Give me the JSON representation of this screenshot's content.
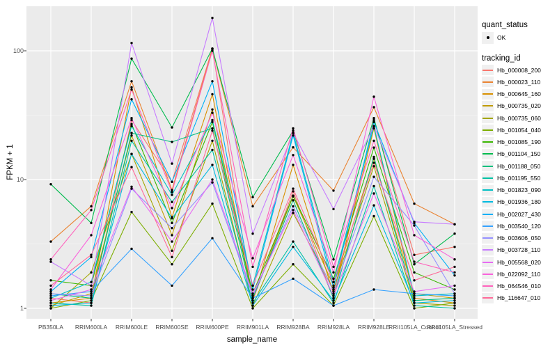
{
  "chart_data": {
    "type": "line",
    "title": "",
    "xlabel": "sample_name",
    "ylabel": "FPKM + 1",
    "y_scale": "log10",
    "ylim": [
      1,
      224
    ],
    "y_ticks": [
      {
        "label": "1",
        "value": 1
      },
      {
        "label": "10",
        "value": 10
      },
      {
        "label": "100",
        "value": 100
      }
    ],
    "y_minor_ticks": [
      3.162,
      31.62
    ],
    "grid": "major white + minor faint on gray panel",
    "legend_position": "right",
    "point_style": "black filled dot on every value",
    "x_categories": [
      "PB350LA",
      "RRIM600LA",
      "RRIM600LE",
      "RRIM600SE",
      "RRIM600PE",
      "RRIM901LA",
      "RRIM928BA",
      "RRIM928LA",
      "RRIM928LE",
      "RRII105LA_Control",
      "RRII105LA_Stressed"
    ],
    "series": [
      {
        "name": "Hb_000008_200",
        "color": "#F8766D",
        "values": [
          1.2,
          1.1,
          29,
          9.6,
          104,
          1.15,
          8.1,
          1.2,
          29,
          2.6,
          3.0
        ]
      },
      {
        "name": "Hb_000023_110",
        "color": "#EA8331",
        "values": [
          3.3,
          6.2,
          58,
          8.3,
          103,
          6.2,
          17.8,
          8.2,
          36.5,
          6.5,
          4.5
        ]
      },
      {
        "name": "Hb_000645_160",
        "color": "#D89000",
        "values": [
          1.1,
          1.2,
          52,
          5.1,
          46,
          1.15,
          13,
          1.3,
          25,
          1.2,
          1.1
        ]
      },
      {
        "name": "Hb_000735_020",
        "color": "#C09B00",
        "values": [
          1.05,
          1.3,
          22,
          3.7,
          35,
          1.2,
          7.4,
          1.5,
          14.5,
          1.3,
          1.2
        ]
      },
      {
        "name": "Hb_000735_060",
        "color": "#A3A500",
        "values": [
          1.0,
          1.9,
          15.8,
          2.8,
          20,
          1.05,
          5.5,
          1.4,
          12.7,
          1.1,
          1.05
        ]
      },
      {
        "name": "Hb_001054_040",
        "color": "#7CAE00",
        "values": [
          1.0,
          1.15,
          5.6,
          2.2,
          6.5,
          1.0,
          2.2,
          1.05,
          5.2,
          1.0,
          1.1
        ]
      },
      {
        "name": "Hb_001085_190",
        "color": "#39B600",
        "values": [
          1.65,
          1.5,
          27,
          4.6,
          28,
          1.3,
          7.5,
          1.7,
          17.7,
          1.9,
          1.4
        ]
      },
      {
        "name": "Hb_001104_150",
        "color": "#00BB4E",
        "values": [
          9.2,
          4.6,
          87,
          25.4,
          104,
          7.3,
          24,
          2.4,
          30,
          2.2,
          3.8
        ]
      },
      {
        "name": "Hb_001188_050",
        "color": "#00BF7D",
        "values": [
          1.3,
          1.2,
          23,
          19.6,
          25,
          1.2,
          6.9,
          1.2,
          15,
          1.15,
          1.2
        ]
      },
      {
        "name": "Hb_001195_550",
        "color": "#00C1A3",
        "values": [
          1.1,
          1.05,
          20,
          6.7,
          17,
          1.1,
          3.3,
          1.1,
          8.9,
          1.05,
          1.0
        ]
      },
      {
        "name": "Hb_001823_090",
        "color": "#00BFC4",
        "values": [
          1.2,
          1.6,
          26,
          7.6,
          29,
          1.5,
          23,
          1.6,
          26,
          1.25,
          1.3
        ]
      },
      {
        "name": "Hb_001936_180",
        "color": "#00BAE0",
        "values": [
          1.05,
          1.1,
          15.8,
          5.0,
          13,
          1.05,
          3.0,
          1.15,
          6.3,
          1.1,
          1.15
        ]
      },
      {
        "name": "Hb_002027_430",
        "color": "#00B0F6",
        "values": [
          1.35,
          2.5,
          42,
          9.6,
          58,
          1.4,
          22,
          1.45,
          28,
          4.6,
          1.8
        ]
      },
      {
        "name": "Hb_003540_120",
        "color": "#35A2FF",
        "values": [
          1.25,
          1.35,
          2.9,
          1.5,
          3.5,
          1.2,
          1.7,
          1.05,
          1.4,
          1.3,
          1.25
        ]
      },
      {
        "name": "Hb_003606_050",
        "color": "#9590FF",
        "values": [
          1.3,
          1.25,
          8.5,
          4.2,
          9.5,
          1.25,
          6.2,
          1.35,
          10.5,
          4.4,
          1.3
        ]
      },
      {
        "name": "Hb_003728_110",
        "color": "#C77CFF",
        "values": [
          2.3,
          1.5,
          115,
          13.3,
          180,
          3.8,
          23,
          5.9,
          26,
          4.7,
          4.5
        ]
      },
      {
        "name": "Hb_005568_020",
        "color": "#E76BF3",
        "values": [
          1.15,
          1.4,
          8.8,
          3.3,
          10,
          1.3,
          5.8,
          1.25,
          7.8,
          1.35,
          1.5
        ]
      },
      {
        "name": "Hb_022092_110",
        "color": "#FA62DB",
        "values": [
          1.4,
          3.7,
          30,
          6.0,
          33,
          2.45,
          15.5,
          1.9,
          44,
          3.7,
          2.4
        ]
      },
      {
        "name": "Hb_064546_010",
        "color": "#FF62BC",
        "values": [
          2.4,
          5.8,
          50,
          8.0,
          100,
          2.1,
          25,
          2.1,
          20,
          2.3,
          1.9
        ]
      },
      {
        "name": "Hb_116647_010",
        "color": "#FF6A98",
        "values": [
          1.5,
          2.6,
          12.5,
          2.5,
          24,
          1.5,
          8.5,
          1.6,
          13.5,
          1.65,
          2.1
        ]
      }
    ]
  },
  "legend": {
    "quant_status_title": "quant_status",
    "quant_status_items": [
      {
        "label": "OK",
        "symbol": "black-point"
      }
    ],
    "tracking_title": "tracking_id"
  },
  "colors": {
    "panel_background": "#EBEBEB",
    "grid_major": "#FFFFFF",
    "grid_minor": "#F5F5F5",
    "axis_text": "#4D4D4D",
    "tick_mark": "#333333",
    "point": "#000000",
    "legend_key_fill": "#F0F0F0"
  }
}
